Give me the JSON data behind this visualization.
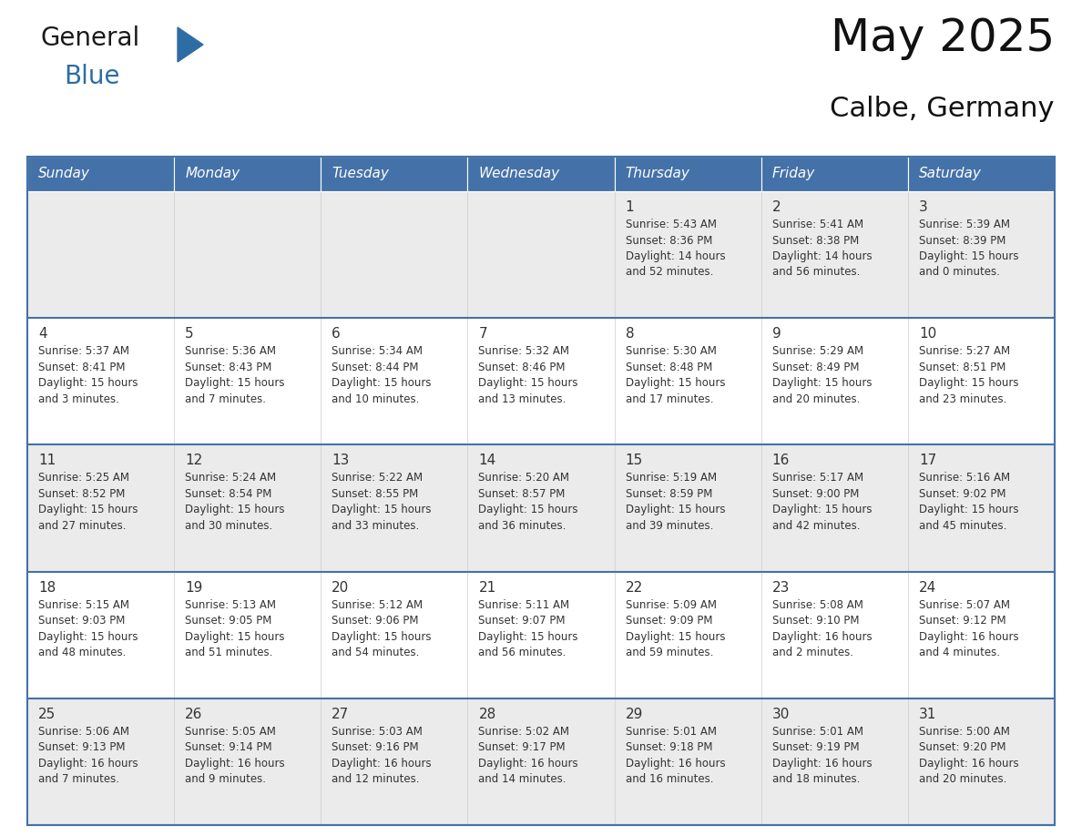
{
  "title": "May 2025",
  "subtitle": "Calbe, Germany",
  "header_bg": "#4472a8",
  "header_text": "#ffffff",
  "cell_bg_light": "#f0f0f0",
  "cell_bg_white": "#ffffff",
  "row_line_color": "#4472a8",
  "text_color": "#333333",
  "days_of_week": [
    "Sunday",
    "Monday",
    "Tuesday",
    "Wednesday",
    "Thursday",
    "Friday",
    "Saturday"
  ],
  "calendar": [
    [
      {
        "day": "",
        "info": ""
      },
      {
        "day": "",
        "info": ""
      },
      {
        "day": "",
        "info": ""
      },
      {
        "day": "",
        "info": ""
      },
      {
        "day": "1",
        "info": "Sunrise: 5:43 AM\nSunset: 8:36 PM\nDaylight: 14 hours\nand 52 minutes."
      },
      {
        "day": "2",
        "info": "Sunrise: 5:41 AM\nSunset: 8:38 PM\nDaylight: 14 hours\nand 56 minutes."
      },
      {
        "day": "3",
        "info": "Sunrise: 5:39 AM\nSunset: 8:39 PM\nDaylight: 15 hours\nand 0 minutes."
      }
    ],
    [
      {
        "day": "4",
        "info": "Sunrise: 5:37 AM\nSunset: 8:41 PM\nDaylight: 15 hours\nand 3 minutes."
      },
      {
        "day": "5",
        "info": "Sunrise: 5:36 AM\nSunset: 8:43 PM\nDaylight: 15 hours\nand 7 minutes."
      },
      {
        "day": "6",
        "info": "Sunrise: 5:34 AM\nSunset: 8:44 PM\nDaylight: 15 hours\nand 10 minutes."
      },
      {
        "day": "7",
        "info": "Sunrise: 5:32 AM\nSunset: 8:46 PM\nDaylight: 15 hours\nand 13 minutes."
      },
      {
        "day": "8",
        "info": "Sunrise: 5:30 AM\nSunset: 8:48 PM\nDaylight: 15 hours\nand 17 minutes."
      },
      {
        "day": "9",
        "info": "Sunrise: 5:29 AM\nSunset: 8:49 PM\nDaylight: 15 hours\nand 20 minutes."
      },
      {
        "day": "10",
        "info": "Sunrise: 5:27 AM\nSunset: 8:51 PM\nDaylight: 15 hours\nand 23 minutes."
      }
    ],
    [
      {
        "day": "11",
        "info": "Sunrise: 5:25 AM\nSunset: 8:52 PM\nDaylight: 15 hours\nand 27 minutes."
      },
      {
        "day": "12",
        "info": "Sunrise: 5:24 AM\nSunset: 8:54 PM\nDaylight: 15 hours\nand 30 minutes."
      },
      {
        "day": "13",
        "info": "Sunrise: 5:22 AM\nSunset: 8:55 PM\nDaylight: 15 hours\nand 33 minutes."
      },
      {
        "day": "14",
        "info": "Sunrise: 5:20 AM\nSunset: 8:57 PM\nDaylight: 15 hours\nand 36 minutes."
      },
      {
        "day": "15",
        "info": "Sunrise: 5:19 AM\nSunset: 8:59 PM\nDaylight: 15 hours\nand 39 minutes."
      },
      {
        "day": "16",
        "info": "Sunrise: 5:17 AM\nSunset: 9:00 PM\nDaylight: 15 hours\nand 42 minutes."
      },
      {
        "day": "17",
        "info": "Sunrise: 5:16 AM\nSunset: 9:02 PM\nDaylight: 15 hours\nand 45 minutes."
      }
    ],
    [
      {
        "day": "18",
        "info": "Sunrise: 5:15 AM\nSunset: 9:03 PM\nDaylight: 15 hours\nand 48 minutes."
      },
      {
        "day": "19",
        "info": "Sunrise: 5:13 AM\nSunset: 9:05 PM\nDaylight: 15 hours\nand 51 minutes."
      },
      {
        "day": "20",
        "info": "Sunrise: 5:12 AM\nSunset: 9:06 PM\nDaylight: 15 hours\nand 54 minutes."
      },
      {
        "day": "21",
        "info": "Sunrise: 5:11 AM\nSunset: 9:07 PM\nDaylight: 15 hours\nand 56 minutes."
      },
      {
        "day": "22",
        "info": "Sunrise: 5:09 AM\nSunset: 9:09 PM\nDaylight: 15 hours\nand 59 minutes."
      },
      {
        "day": "23",
        "info": "Sunrise: 5:08 AM\nSunset: 9:10 PM\nDaylight: 16 hours\nand 2 minutes."
      },
      {
        "day": "24",
        "info": "Sunrise: 5:07 AM\nSunset: 9:12 PM\nDaylight: 16 hours\nand 4 minutes."
      }
    ],
    [
      {
        "day": "25",
        "info": "Sunrise: 5:06 AM\nSunset: 9:13 PM\nDaylight: 16 hours\nand 7 minutes."
      },
      {
        "day": "26",
        "info": "Sunrise: 5:05 AM\nSunset: 9:14 PM\nDaylight: 16 hours\nand 9 minutes."
      },
      {
        "day": "27",
        "info": "Sunrise: 5:03 AM\nSunset: 9:16 PM\nDaylight: 16 hours\nand 12 minutes."
      },
      {
        "day": "28",
        "info": "Sunrise: 5:02 AM\nSunset: 9:17 PM\nDaylight: 16 hours\nand 14 minutes."
      },
      {
        "day": "29",
        "info": "Sunrise: 5:01 AM\nSunset: 9:18 PM\nDaylight: 16 hours\nand 16 minutes."
      },
      {
        "day": "30",
        "info": "Sunrise: 5:01 AM\nSunset: 9:19 PM\nDaylight: 16 hours\nand 18 minutes."
      },
      {
        "day": "31",
        "info": "Sunrise: 5:00 AM\nSunset: 9:20 PM\nDaylight: 16 hours\nand 20 minutes."
      }
    ]
  ],
  "logo_general_color": "#1a1a1a",
  "logo_blue_color": "#2e6da4",
  "title_fontsize": 36,
  "subtitle_fontsize": 22,
  "header_fontsize": 11,
  "day_fontsize": 11,
  "info_fontsize": 8.5,
  "row_bg_colors": [
    "#ebebeb",
    "#ffffff",
    "#ebebeb",
    "#ffffff",
    "#ebebeb"
  ]
}
